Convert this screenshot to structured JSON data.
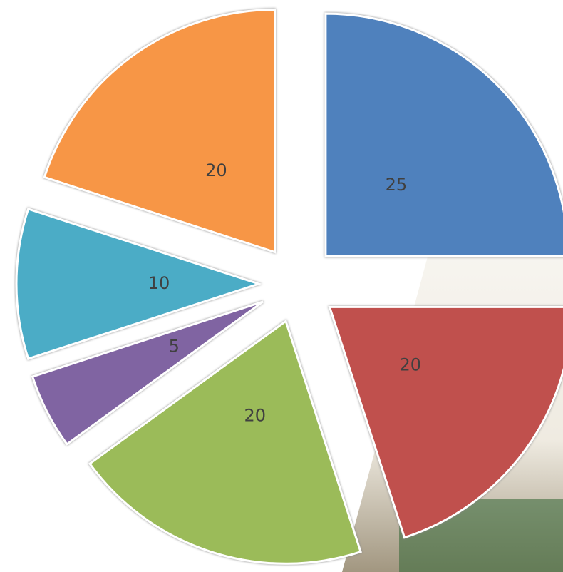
{
  "chart_data": {
    "type": "pie",
    "values": [
      25,
      20,
      20,
      5,
      10,
      20
    ],
    "colors": [
      "#4f81bd",
      "#c0504d",
      "#9bbb59",
      "#8064a2",
      "#4bacc6",
      "#f79646"
    ]
  }
}
